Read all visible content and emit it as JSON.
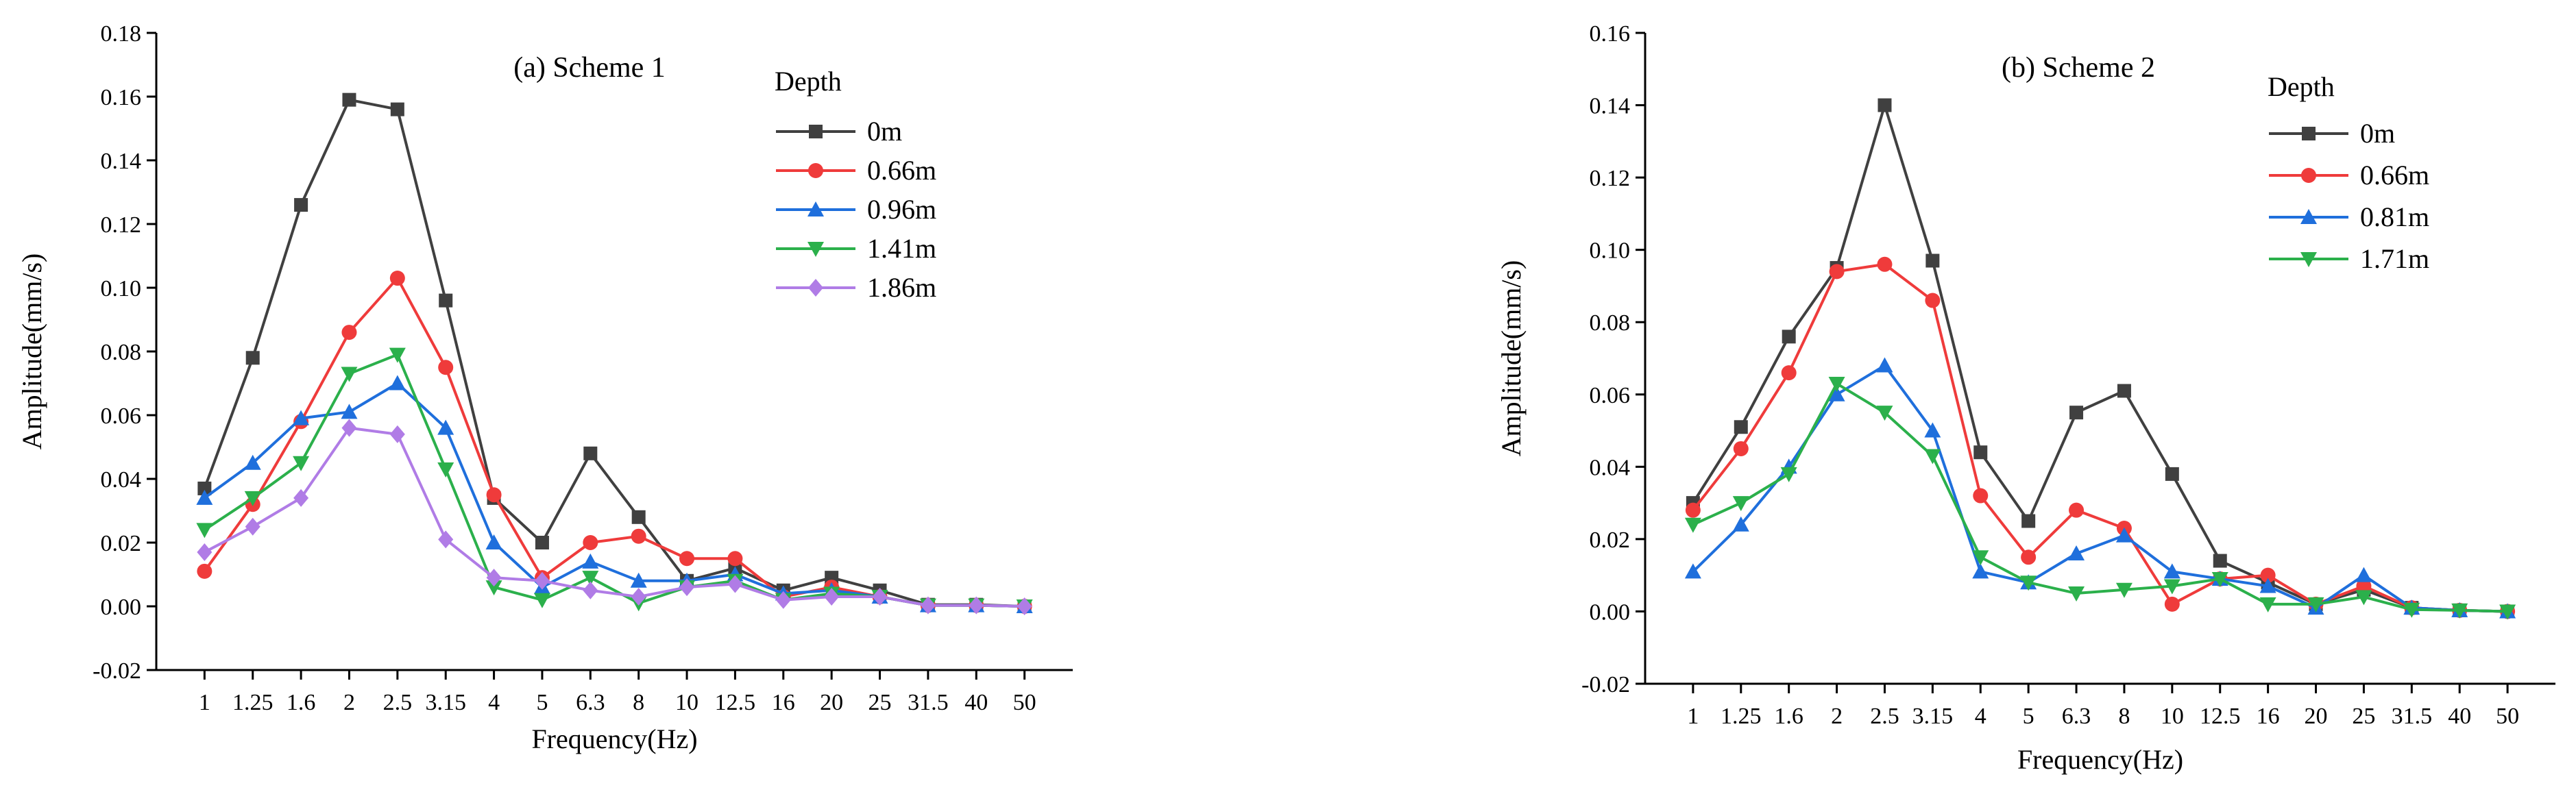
{
  "chart_data": [
    {
      "type": "line",
      "title": "(a) Scheme 1",
      "xlabel": "Frequency(Hz)",
      "ylabel": "Amplitude(mm/s)",
      "ylim": [
        -0.02,
        0.18
      ],
      "yticks": [
        "-0.02",
        "0.00",
        "0.02",
        "0.04",
        "0.06",
        "0.08",
        "0.10",
        "0.12",
        "0.14",
        "0.16",
        "0.18"
      ],
      "categories": [
        "1",
        "1.25",
        "1.6",
        "2",
        "2.5",
        "3.15",
        "4",
        "5",
        "6.3",
        "8",
        "10",
        "12.5",
        "16",
        "20",
        "25",
        "31.5",
        "40",
        "50"
      ],
      "legend_title": "Depth",
      "grid": false,
      "series": [
        {
          "name": "0m",
          "color": "#404040",
          "marker": "square",
          "values": [
            0.037,
            0.078,
            0.126,
            0.159,
            0.156,
            0.096,
            0.034,
            0.02,
            0.048,
            0.028,
            0.008,
            0.012,
            0.005,
            0.009,
            0.005,
            0.0005,
            0.0005,
            0.0
          ]
        },
        {
          "name": "0.66m",
          "color": "#ef3b3b",
          "marker": "circle",
          "values": [
            0.011,
            0.032,
            0.058,
            0.086,
            0.103,
            0.075,
            0.035,
            0.009,
            0.02,
            0.022,
            0.015,
            0.015,
            0.003,
            0.006,
            0.003,
            0.0003,
            0.0003,
            0.0
          ]
        },
        {
          "name": "0.96m",
          "color": "#1f6fdc",
          "marker": "triangle-up",
          "values": [
            0.034,
            0.045,
            0.059,
            0.061,
            0.07,
            0.056,
            0.02,
            0.006,
            0.014,
            0.008,
            0.008,
            0.01,
            0.004,
            0.005,
            0.003,
            0.0003,
            0.0003,
            0.0
          ]
        },
        {
          "name": "1.41m",
          "color": "#2bb04b",
          "marker": "triangle-down",
          "values": [
            0.024,
            0.034,
            0.045,
            0.073,
            0.079,
            0.043,
            0.006,
            0.002,
            0.009,
            0.001,
            0.006,
            0.008,
            0.002,
            0.004,
            0.003,
            0.0003,
            0.0003,
            0.0
          ]
        },
        {
          "name": "1.86m",
          "color": "#b07ce6",
          "marker": "diamond",
          "values": [
            0.017,
            0.025,
            0.034,
            0.056,
            0.054,
            0.021,
            0.009,
            0.008,
            0.005,
            0.003,
            0.006,
            0.007,
            0.002,
            0.003,
            0.003,
            0.0003,
            0.0003,
            0.0
          ]
        }
      ]
    },
    {
      "type": "line",
      "title": "(b) Scheme 2",
      "xlabel": "Frequency(Hz)",
      "ylabel": "Amplitude(mm/s)",
      "ylim": [
        -0.02,
        0.16
      ],
      "yticks": [
        "-0.02",
        "0.00",
        "0.02",
        "0.04",
        "0.06",
        "0.08",
        "0.10",
        "0.12",
        "0.14",
        "0.16"
      ],
      "categories": [
        "1",
        "1.25",
        "1.6",
        "2",
        "2.5",
        "3.15",
        "4",
        "5",
        "6.3",
        "8",
        "10",
        "12.5",
        "16",
        "20",
        "25",
        "31.5",
        "40",
        "50"
      ],
      "legend_title": "Depth",
      "grid": false,
      "series": [
        {
          "name": "0m",
          "color": "#404040",
          "marker": "square",
          "values": [
            0.03,
            0.051,
            0.076,
            0.095,
            0.14,
            0.097,
            0.044,
            0.025,
            0.055,
            0.061,
            0.038,
            0.014,
            0.008,
            0.002,
            0.006,
            0.001,
            0.0003,
            0.0
          ]
        },
        {
          "name": "0.66m",
          "color": "#ef3b3b",
          "marker": "circle",
          "values": [
            0.028,
            0.045,
            0.066,
            0.094,
            0.096,
            0.086,
            0.032,
            0.015,
            0.028,
            0.023,
            0.002,
            0.009,
            0.01,
            0.002,
            0.007,
            0.001,
            0.0003,
            0.0
          ]
        },
        {
          "name": "0.81m",
          "color": "#1f6fdc",
          "marker": "triangle-up",
          "values": [
            0.011,
            0.024,
            0.04,
            0.06,
            0.068,
            0.05,
            0.011,
            0.008,
            0.016,
            0.021,
            0.011,
            0.009,
            0.007,
            0.001,
            0.01,
            0.001,
            0.0003,
            0.0
          ]
        },
        {
          "name": "1.71m",
          "color": "#2bb04b",
          "marker": "triangle-down",
          "values": [
            0.024,
            0.03,
            0.038,
            0.063,
            0.055,
            0.043,
            0.015,
            0.008,
            0.005,
            0.006,
            0.007,
            0.009,
            0.002,
            0.002,
            0.004,
            0.0005,
            0.0003,
            0.0
          ]
        }
      ]
    }
  ]
}
